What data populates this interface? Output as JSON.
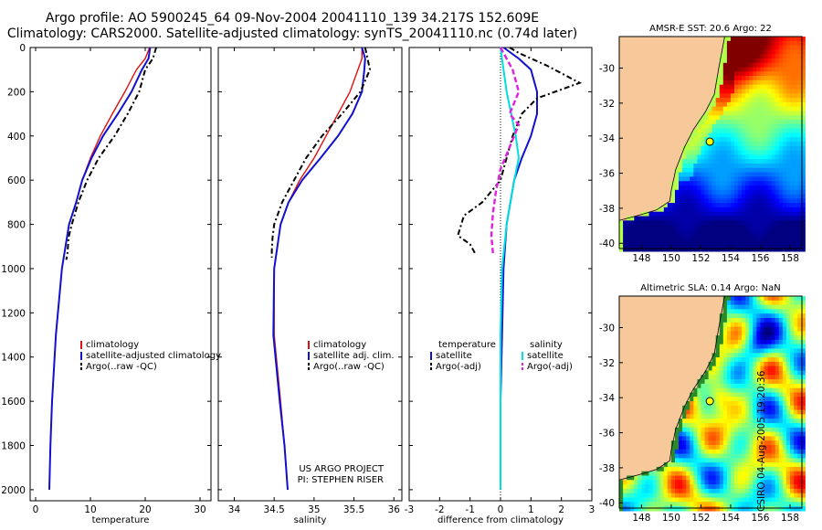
{
  "titles": {
    "line1": "Argo profile: AO 5900245_64 09-Nov-2004 20041110_139 34.217S 152.609E",
    "line2": "Climatology: CARS2000. Satellite-adjusted climatology: synTS_20041110.nc (0.74d later)"
  },
  "credit": "CSIRO 04-Aug-2005 19:20:36",
  "colors": {
    "climatology": "#e01010",
    "satellite": "#1010d0",
    "argo": "#000000",
    "salinity_diff": "#00dede",
    "salinity_argo_diff": "#e020e0",
    "land": "#f6c89a"
  },
  "chart_data": [
    {
      "type": "line",
      "xlabel": "temperature",
      "ylabel": "",
      "xlim": [
        -1,
        32
      ],
      "ylim": [
        2050,
        0
      ],
      "xticks": [
        0,
        10,
        20,
        30
      ],
      "yticks": [
        0,
        200,
        400,
        600,
        800,
        1000,
        1200,
        1400,
        1600,
        1800,
        2000
      ],
      "legend_position": "lower-center",
      "series": [
        {
          "name": "climatology",
          "x": [
            20.8,
            20.0,
            18.4,
            16.3,
            14.0,
            11.8,
            10.0,
            8.5,
            7.4,
            6.1,
            4.8,
            3.7,
            3.0,
            2.7,
            2.5
          ],
          "y": [
            0,
            50,
            100,
            200,
            300,
            400,
            500,
            600,
            700,
            800,
            1000,
            1300,
            1600,
            1800,
            2000
          ]
        },
        {
          "name": "satellite-adjusted climatology",
          "x": [
            20.9,
            20.6,
            19.4,
            17.5,
            15.0,
            12.3,
            10.2,
            8.5,
            7.4,
            6.1,
            4.8,
            3.7,
            3.0,
            2.7,
            2.5
          ],
          "y": [
            0,
            50,
            100,
            200,
            300,
            400,
            500,
            600,
            700,
            800,
            1000,
            1300,
            1600,
            1800,
            2000
          ]
        },
        {
          "name": "Argo(..raw -QC)",
          "x": [
            22.0,
            21.4,
            20.0,
            18.9,
            16.8,
            14.4,
            11.5,
            9.4,
            7.8,
            6.6,
            6.0,
            5.9,
            5.8,
            5.6
          ],
          "y": [
            0,
            50,
            100,
            200,
            300,
            400,
            500,
            600,
            700,
            800,
            860,
            900,
            930,
            960
          ]
        }
      ]
    },
    {
      "type": "line",
      "xlabel": "salinity",
      "xlim": [
        33.8,
        36.1
      ],
      "ylim": [
        2050,
        0
      ],
      "xticks": [
        34,
        34.5,
        35,
        35.5,
        36
      ],
      "yticks": [
        0,
        200,
        400,
        600,
        800,
        1000,
        1200,
        1400,
        1600,
        1800,
        2000
      ],
      "legend_position": "lower-center",
      "annotations": [
        "US ARGO PROJECT",
        "PI: STEPHEN RISER"
      ],
      "series": [
        {
          "name": "climatology",
          "x": [
            35.6,
            35.6,
            35.55,
            35.45,
            35.3,
            35.15,
            35.0,
            34.82,
            34.68,
            34.58,
            34.5,
            34.5,
            34.58,
            34.63,
            34.67
          ],
          "y": [
            0,
            50,
            100,
            200,
            300,
            400,
            500,
            600,
            700,
            800,
            1000,
            1300,
            1600,
            1800,
            2000
          ]
        },
        {
          "name": "satellite adj. clim.",
          "x": [
            35.6,
            35.64,
            35.63,
            35.6,
            35.48,
            35.3,
            35.08,
            34.85,
            34.68,
            34.58,
            34.5,
            34.49,
            34.57,
            34.63,
            34.67
          ],
          "y": [
            0,
            50,
            100,
            200,
            300,
            400,
            500,
            600,
            700,
            800,
            1000,
            1300,
            1600,
            1800,
            2000
          ]
        },
        {
          "name": "Argo(..raw -QC)",
          "x": [
            35.64,
            35.67,
            35.7,
            35.58,
            35.35,
            35.1,
            34.9,
            34.75,
            34.6,
            34.5,
            34.48,
            34.47,
            34.47
          ],
          "y": [
            0,
            50,
            100,
            200,
            300,
            400,
            500,
            600,
            700,
            800,
            860,
            920,
            950
          ]
        }
      ]
    },
    {
      "type": "line",
      "xlabel": "difference from climatology",
      "xlim": [
        -3,
        3
      ],
      "ylim": [
        2050,
        0
      ],
      "xticks": [
        -3,
        -2,
        -1,
        0,
        1,
        2,
        3
      ],
      "yticks": [
        0,
        200,
        400,
        600,
        800,
        1000,
        1200,
        1400,
        1600,
        1800,
        2000
      ],
      "legend_position": "lower-center",
      "legend_groups": [
        {
          "title": "temperature",
          "entries": [
            "satellite",
            "Argo(-adj)"
          ]
        },
        {
          "title": "salinity",
          "entries": [
            "satellite",
            "Argo(-adj)"
          ]
        }
      ],
      "series": [
        {
          "name": "temperature satellite",
          "x": [
            0.1,
            0.6,
            1.0,
            1.2,
            1.2,
            1.0,
            0.7,
            0.45,
            0.2,
            0.1,
            0.05,
            0.0,
            0.0
          ],
          "y": [
            0,
            50,
            100,
            200,
            300,
            400,
            500,
            600,
            800,
            1000,
            1300,
            1600,
            2000
          ]
        },
        {
          "name": "temperature Argo(-adj)",
          "x": [
            0.3,
            0.6,
            1.5,
            2.6,
            1.2,
            0.7,
            0.4,
            0.0,
            -0.6,
            -1.2,
            -1.4,
            -1.0,
            -0.8
          ],
          "y": [
            0,
            25,
            80,
            160,
            230,
            300,
            400,
            600,
            700,
            760,
            850,
            890,
            940
          ]
        },
        {
          "name": "salinity satellite",
          "x": [
            0.0,
            0.1,
            0.2,
            0.35,
            0.5,
            0.6,
            0.45,
            0.2,
            0.05,
            0.0,
            0.0
          ],
          "y": [
            0,
            100,
            200,
            300,
            400,
            500,
            600,
            800,
            1000,
            1300,
            2000
          ]
        },
        {
          "name": "salinity Argo(-adj)",
          "x": [
            0.0,
            0.4,
            0.6,
            0.3,
            0.6,
            0.3,
            0.0,
            -0.15,
            -0.25,
            -0.3,
            -0.25
          ],
          "y": [
            0,
            100,
            200,
            300,
            350,
            450,
            550,
            650,
            750,
            850,
            930
          ]
        }
      ]
    },
    {
      "type": "heatmap",
      "title": "AMSR-E SST: 20.6 Argo: 22",
      "xlim": [
        146.5,
        158.8
      ],
      "ylim": [
        -40.3,
        -28.2
      ],
      "xticks": [
        148,
        150,
        152,
        154,
        156,
        158
      ],
      "yticks": [
        -30,
        -32,
        -34,
        -36,
        -38,
        -40
      ],
      "argo_position": {
        "lon": 152.6,
        "lat": -34.2
      }
    },
    {
      "type": "heatmap",
      "title": "Altimetric SLA: 0.14 Argo: NaN",
      "xlim": [
        146.5,
        158.8
      ],
      "ylim": [
        -40.3,
        -28.2
      ],
      "xticks": [
        148,
        150,
        152,
        154,
        156,
        158
      ],
      "yticks": [
        -30,
        -32,
        -34,
        -36,
        -38,
        -40
      ],
      "argo_position": {
        "lon": 152.6,
        "lat": -34.2
      }
    }
  ]
}
